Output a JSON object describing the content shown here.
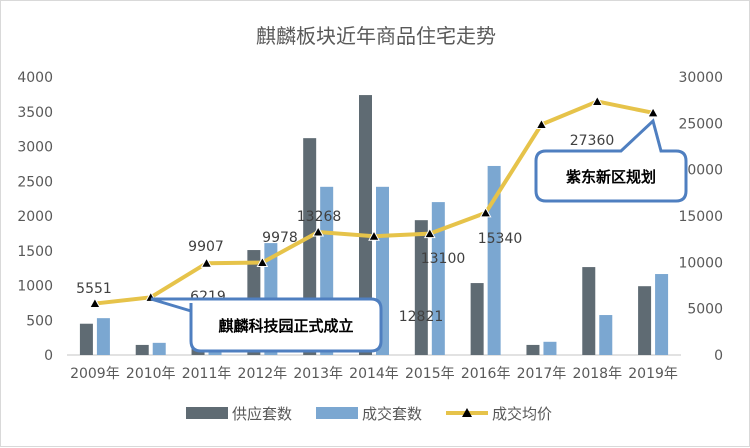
{
  "chart_data": {
    "type": "bar+line",
    "title": "麒麟板块近年商品住宅走势",
    "categories": [
      "2009年",
      "2010年",
      "2011年",
      "2012年",
      "2013年",
      "2014年",
      "2015年",
      "2016年",
      "2017年",
      "2018年",
      "2019年"
    ],
    "left_axis": {
      "ylim": [
        0,
        4000
      ],
      "ticks": [
        0,
        500,
        1000,
        1500,
        2000,
        2500,
        3000,
        3500,
        4000
      ]
    },
    "right_axis": {
      "ylim": [
        0,
        30000
      ],
      "ticks": [
        0,
        5000,
        10000,
        15000,
        20000,
        25000,
        30000
      ]
    },
    "series": [
      {
        "name": "供应套数",
        "type": "bar",
        "axis": "left",
        "color": "#5f6b73",
        "values": [
          450,
          145,
          200,
          1510,
          3120,
          3740,
          1940,
          1035,
          145,
          1265,
          990
        ]
      },
      {
        "name": "成交套数",
        "type": "bar",
        "axis": "left",
        "color": "#7ba7d1",
        "values": [
          530,
          175,
          250,
          1610,
          2420,
          2420,
          2200,
          2720,
          190,
          575,
          1165
        ]
      },
      {
        "name": "成交均价",
        "type": "line",
        "axis": "right",
        "color": "#e6c34a",
        "values": [
          5551,
          6219,
          9907,
          9978,
          13268,
          12821,
          13100,
          15340,
          24870,
          27360,
          26131
        ]
      }
    ],
    "annotations": [
      {
        "text": "麒麟科技园正式成立",
        "target": "2010年"
      },
      {
        "text": "紫东新区规划",
        "target": "2019年"
      }
    ],
    "grid": false,
    "legend": "bottom"
  }
}
